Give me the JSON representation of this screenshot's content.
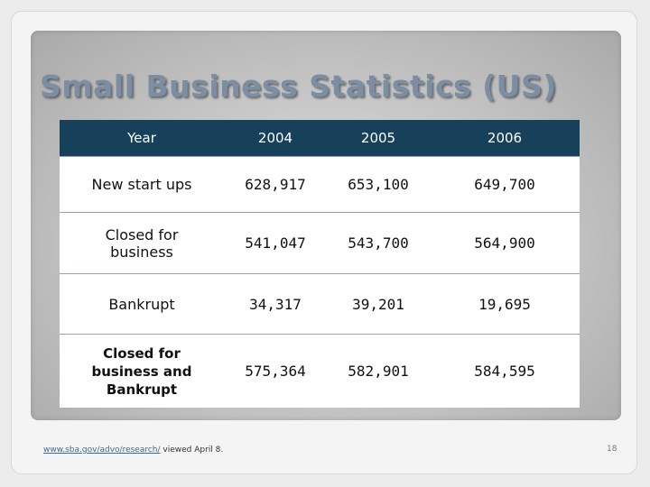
{
  "slide": {
    "title": "Small Business Statistics (US)",
    "footer_link": "www.sba.gov/advo/research/",
    "footer_text": " viewed April 8.",
    "page_number": "18"
  },
  "table": {
    "headers": [
      "Year",
      "2004",
      "2005",
      "2006"
    ],
    "rows": [
      {
        "label": "New start ups",
        "values": [
          "628,917",
          "653,100",
          "649,700"
        ]
      },
      {
        "label": "Closed for business",
        "values": [
          "541,047",
          "543,700",
          "564,900"
        ]
      },
      {
        "label": "Bankrupt",
        "values": [
          "34,317",
          "39,201",
          "19,695"
        ]
      },
      {
        "label": "Closed for business and Bankrupt",
        "values": [
          "575,364",
          "582,901",
          "584,595"
        ]
      }
    ]
  },
  "colors": {
    "header_bg": "#17405b",
    "title": "#7b8ea4"
  }
}
